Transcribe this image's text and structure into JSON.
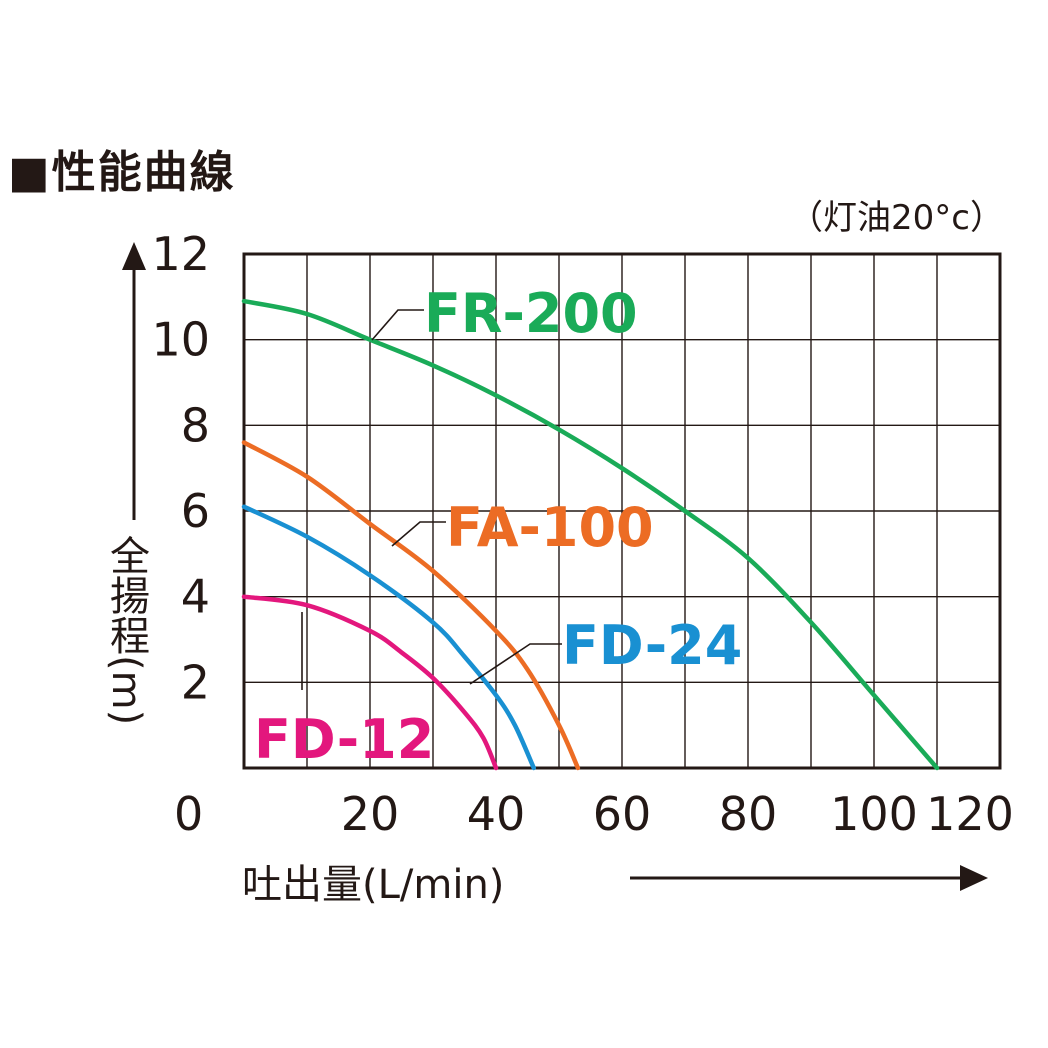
{
  "title": "■性能曲線",
  "condition": "（灯油20°c）",
  "chart_data": {
    "type": "line",
    "xlabel": "吐出量(L/min)",
    "ylabel": "全揚程(m)",
    "xlim": [
      0,
      120
    ],
    "ylim": [
      0,
      12
    ],
    "xticks": [
      0,
      20,
      40,
      60,
      80,
      100,
      120
    ],
    "yticks": [
      2,
      4,
      6,
      8,
      10,
      12
    ],
    "grid": true,
    "series": [
      {
        "name": "FR-200",
        "color": "#1aab58",
        "x": [
          0,
          10,
          20,
          30,
          40,
          50,
          60,
          70,
          80,
          90,
          100,
          110
        ],
        "y": [
          10.9,
          10.6,
          10.0,
          9.4,
          8.7,
          7.9,
          7.0,
          6.0,
          4.9,
          3.4,
          1.7,
          0
        ]
      },
      {
        "name": "FA-100",
        "color": "#ec6c24",
        "x": [
          0,
          10,
          20,
          30,
          40,
          45,
          50,
          53
        ],
        "y": [
          7.6,
          6.8,
          5.7,
          4.6,
          3.2,
          2.3,
          1.0,
          0
        ]
      },
      {
        "name": "FD-24",
        "color": "#1990d2",
        "x": [
          0,
          10,
          20,
          30,
          35,
          40,
          43,
          46
        ],
        "y": [
          6.1,
          5.4,
          4.5,
          3.4,
          2.6,
          1.7,
          1.0,
          0
        ]
      },
      {
        "name": "FD-12",
        "color": "#e3177d",
        "x": [
          0,
          10,
          20,
          25,
          30,
          35,
          38,
          40
        ],
        "y": [
          4.0,
          3.8,
          3.2,
          2.7,
          2.1,
          1.3,
          0.7,
          0
        ]
      }
    ]
  }
}
